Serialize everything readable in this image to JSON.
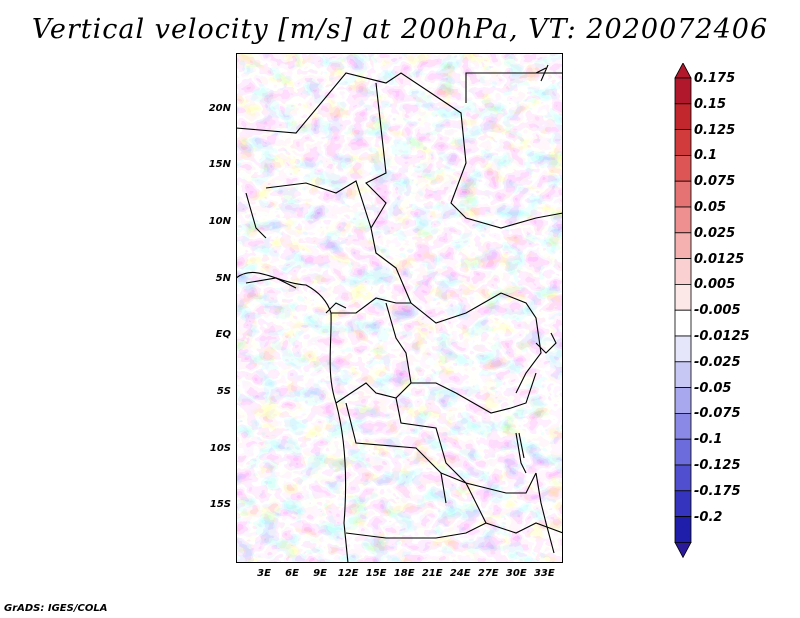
{
  "title": "Vertical velocity [m/s] at 200hPa, VT: 2020072406",
  "credit": "GrADS: IGES/COLA",
  "map": {
    "lon_range": [
      0,
      35
    ],
    "lat_range": [
      -20,
      25
    ],
    "lat_ticks": [
      {
        "lat": 20,
        "label": "20N"
      },
      {
        "lat": 15,
        "label": "15N"
      },
      {
        "lat": 10,
        "label": "10N"
      },
      {
        "lat": 5,
        "label": "5N"
      },
      {
        "lat": 0,
        "label": "EQ"
      },
      {
        "lat": -5,
        "label": "5S"
      },
      {
        "lat": -10,
        "label": "10S"
      },
      {
        "lat": -15,
        "label": "15S"
      }
    ],
    "lon_ticks": [
      {
        "lon": 3,
        "label": "3E"
      },
      {
        "lon": 6,
        "label": "6E"
      },
      {
        "lon": 9,
        "label": "9E"
      },
      {
        "lon": 12,
        "label": "12E"
      },
      {
        "lon": 15,
        "label": "15E"
      },
      {
        "lon": 18,
        "label": "18E"
      },
      {
        "lon": 21,
        "label": "21E"
      },
      {
        "lon": 24,
        "label": "24E"
      },
      {
        "lon": 27,
        "label": "27E"
      },
      {
        "lon": 30,
        "label": "30E"
      },
      {
        "lon": 33,
        "label": "33E"
      }
    ]
  },
  "colorbar": {
    "levels": [
      {
        "label": "0.175",
        "color": "#b2182b"
      },
      {
        "label": "0.15",
        "color": "#c1272d"
      },
      {
        "label": "0.125",
        "color": "#d13b3b"
      },
      {
        "label": "0.1",
        "color": "#dd5555"
      },
      {
        "label": "0.075",
        "color": "#e57373"
      },
      {
        "label": "0.05",
        "color": "#ee9090"
      },
      {
        "label": "0.025",
        "color": "#f5b0b0"
      },
      {
        "label": "0.0125",
        "color": "#fad0d0"
      },
      {
        "label": "0.005",
        "color": "#fde8e8"
      },
      {
        "label": "-0.005",
        "color": "#ffffff"
      },
      {
        "label": "-0.0125",
        "color": "#e6e6fb"
      },
      {
        "label": "-0.025",
        "color": "#c8c8f5"
      },
      {
        "label": "-0.05",
        "color": "#a8a8ef"
      },
      {
        "label": "-0.075",
        "color": "#8a8ae6"
      },
      {
        "label": "-0.1",
        "color": "#6c6cdc"
      },
      {
        "label": "-0.125",
        "color": "#4f4fcf"
      },
      {
        "label": "-0.175",
        "color": "#3434bf"
      },
      {
        "label": "-0.2",
        "color": "#1e1eaa"
      }
    ],
    "top_color": "#b2182b",
    "bottom_color": "#2b1a9a"
  }
}
